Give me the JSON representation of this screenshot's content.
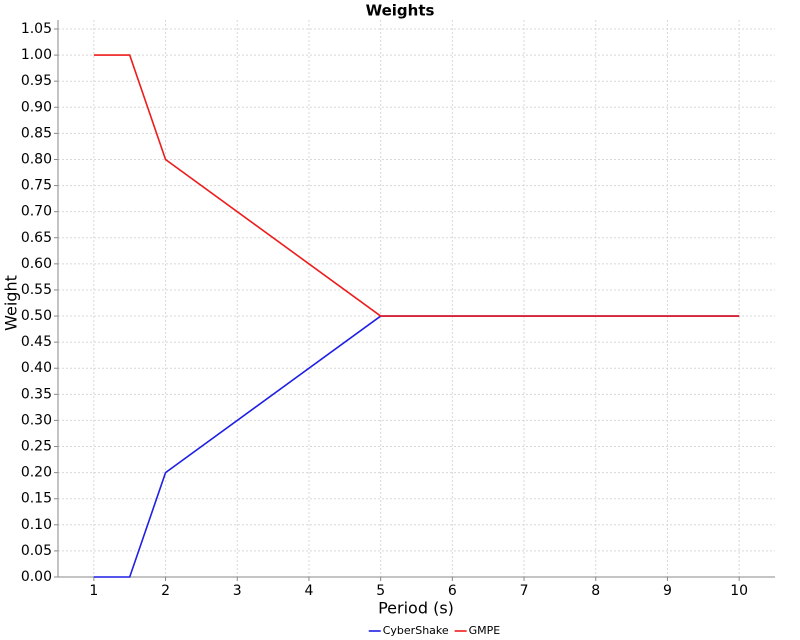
{
  "chart_data": {
    "type": "line",
    "title": "Weights",
    "x_label": "Period (s)",
    "y_label": "Weight",
    "xlim": [
      0.5,
      10.5
    ],
    "ylim": [
      0,
      1.05
    ],
    "xticks": [
      1,
      2,
      3,
      4,
      5,
      6,
      7,
      8,
      9,
      10
    ],
    "yticks": [
      {
        "value": 0,
        "label": "0.00"
      },
      0.05,
      {
        "value": 0.1,
        "label": "0.10"
      },
      0.15,
      {
        "value": 0.2,
        "label": "0.20"
      },
      0.25,
      {
        "value": 0.3,
        "label": "0.30"
      },
      0.35,
      {
        "value": 0.4,
        "label": "0.40"
      },
      0.45,
      {
        "value": 0.5,
        "label": "0.50"
      },
      0.55,
      {
        "value": 0.6,
        "label": "0.60"
      },
      0.65,
      {
        "value": 0.7,
        "label": "0.70"
      },
      0.75,
      {
        "value": 0.8,
        "label": "0.80"
      },
      0.85,
      {
        "value": 0.9,
        "label": "0.90"
      },
      0.95,
      {
        "value": 1,
        "label": "1.00"
      },
      1.05
    ],
    "grid": true,
    "legend": "bottom",
    "x": [
      1,
      1.5,
      2,
      5,
      10
    ],
    "series": [
      {
        "name": "CyberShake",
        "color": "#1f1fe6",
        "values": [
          0,
          0,
          0.2,
          0.5,
          0.5
        ]
      },
      {
        "name": "GMPE",
        "color": "#ee1c1c",
        "values": [
          1,
          1,
          0.8,
          0.5,
          0.5
        ]
      }
    ]
  }
}
